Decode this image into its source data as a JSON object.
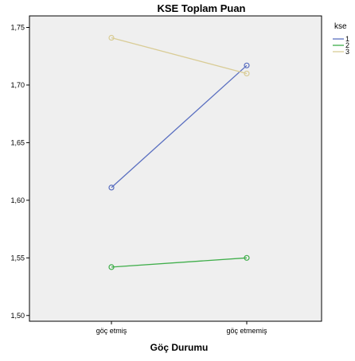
{
  "chart_data": {
    "type": "line",
    "title": "KSE Toplam Puan",
    "xlabel": "Göç Durumu",
    "ylabel": "",
    "categories": [
      "göç etmiş",
      "göç etmemiş"
    ],
    "ylim": [
      1.495,
      1.76
    ],
    "yticks": [
      1.5,
      1.55,
      1.6,
      1.65,
      1.7,
      1.75
    ],
    "ytick_labels": [
      "1,50",
      "1,55",
      "1,60",
      "1,65",
      "1,70",
      "1,75"
    ],
    "grid": false,
    "legend_title": "kse",
    "legend_position": "top-right",
    "series": [
      {
        "name": "1",
        "color": "#5a6fc0",
        "values": [
          1.611,
          1.717
        ]
      },
      {
        "name": "2",
        "color": "#3fae4a",
        "values": [
          1.542,
          1.55
        ]
      },
      {
        "name": "3",
        "color": "#d9cc96",
        "values": [
          1.741,
          1.71
        ]
      }
    ],
    "plot_background": "#efefef"
  }
}
